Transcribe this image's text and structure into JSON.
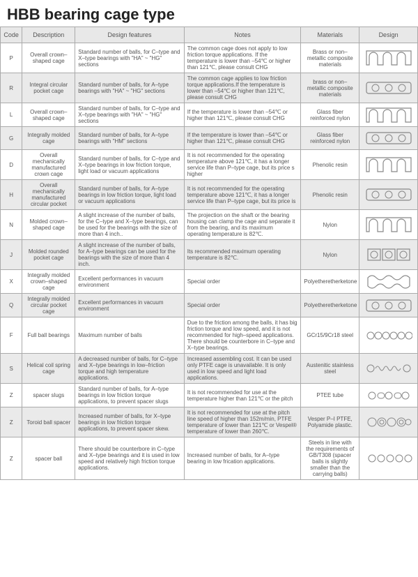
{
  "title": "HBB bearing cage type",
  "headers": {
    "code": "Code",
    "description": "Description",
    "features": "Design features",
    "notes": "Notes",
    "materials": "Materials",
    "design": "Design"
  },
  "rows": [
    {
      "code": "P",
      "desc": "Overall crown–shaped cage",
      "feat": "Standard number of balls, for C–type and X–type bearings with \"HA\" ~ \"HG\" sections",
      "notes": "The common cage does not apply to low friction torque applications. If the temperature is lower than –54℃ or higher than 121℃, please consult CHG",
      "mat": "Brass or non–metallic composite materials",
      "shape": "crown",
      "alt": false
    },
    {
      "code": "R",
      "desc": "Integral circular pocket cage",
      "feat": "Standard number of balls, for A–type bearings with \"HA\" ~ \"HG\" sections",
      "notes": "The common cage applies to low friction torque applications.If the temperature is lower than –54℃ or higher than 121℃, please consult CHG",
      "mat": "brass or non–metallic composite materials",
      "shape": "rect3",
      "alt": true
    },
    {
      "code": "L",
      "desc": "Overall crown–shaped cage",
      "feat": "Standard number of balls, for C–type and X–type bearings with \"HA\" ~ \"HG\" sections",
      "notes": "If the temperature is lower than –54℃ or higher than 121℃, please consult CHG",
      "mat": "Glass fiber reinforced nylon",
      "shape": "crown",
      "alt": false
    },
    {
      "code": "G",
      "desc": "Integrally molded cage",
      "feat": "Standard number of balls, for A–type bearings with \"HM\" sections",
      "notes": "If the temperature is lower than –54℃ or higher than 121℃, please consult CHG",
      "mat": "Glass fiber reinforced nylon",
      "shape": "rect3",
      "alt": true
    },
    {
      "code": "D",
      "desc": "Overall mechanically manufactured crown cage",
      "feat": "Standard number of balls, for C–type and X–type bearings in low friction torque, light load or vacuum applications",
      "notes": "It is not recommended for the operating temperature above 121℃, it has a longer service life than P–type cage, but its price s higher",
      "mat": "Phenolic resin",
      "shape": "crown",
      "alt": false
    },
    {
      "code": "H",
      "desc": "Overall mechanically manufactured circular pocket",
      "feat": "Standard number of balls, for A–type bearings in low friction torque, light load or vacuum applications",
      "notes": "It is not recommended for the operating temperature above 121℃, it has a longer service life than P–type cage, but its price is",
      "mat": "Phenolic resin",
      "shape": "rect3",
      "alt": true
    },
    {
      "code": "N",
      "desc": "Molded crown–shaped cage",
      "feat": "A slight increase of the number of balls, for the C–type and X–type bearings, can be used for the bearings with the size of more than 4 inch..",
      "notes": "The projection on the shaft or the bearing housing can clamp the cage and separate it from the bearing, and its maximum operating temperature is 82℃.",
      "mat": "Nylon",
      "shape": "crown",
      "alt": false
    },
    {
      "code": "J",
      "desc": "Molded rounded pocket cage",
      "feat": "A slight increase of the number of balls, for A–type bearings can be used for the bearings with the size of more than 4 inch.",
      "notes": "Its recommended maximum operating temperature is 82℃.",
      "mat": "Nylon",
      "shape": "rect3sq",
      "alt": true
    },
    {
      "code": "X",
      "desc": "Integrally molded crown–shaped cage",
      "feat": "Excellent performances in vacuum environment",
      "notes": "Special order",
      "mat": "Polyetheretherketone",
      "shape": "wavy",
      "alt": false
    },
    {
      "code": "Q",
      "desc": "Integrally molded circular pocket cage",
      "feat": "Excellent performances in vacuum environment",
      "notes": "Special order",
      "mat": "Polyetheretherketone",
      "shape": "rect3",
      "alt": true
    },
    {
      "code": "F",
      "desc": "Full ball bearings",
      "feat": "Maximum number of balls",
      "notes": "Due to the friction among the balls, it has big friction torque and low speed, and it is not recommended for high–speed applications. There should be counterbore in C–type and X–type bearings.",
      "mat": "GCr15/9Cr18 steel",
      "shape": "balls6",
      "alt": false
    },
    {
      "code": "S",
      "desc": "Helical coil spring cage",
      "feat": "A decreased number of balls, for C–type and X–type bearings in low–friction torque and high temperature applications.",
      "notes": "Increased assembling cost. It can be used only PTFE cage is unavailable. It is only used in low speed and light load applications.",
      "mat": "Austenitic stainless steel",
      "shape": "spring",
      "alt": true
    },
    {
      "code": "Z",
      "desc": "spacer slugs",
      "feat": "Standard number of balls, for A–type bearings in low friction torque applications, to prevent spacer slugs",
      "notes": "It is not recommended for use at the temperature higher than 121℃ or the pitch",
      "mat": "PTEE tube",
      "shape": "slugs",
      "alt": false
    },
    {
      "code": "Z",
      "desc": "Toroid ball spacer",
      "feat": "Increased number of balls, for X–type bearings in low friction torque applications, to prevent spacer skew.",
      "notes": "It is not recommended for use at the pitch line speed of higher than 152m/min, PTFE temperature of lower than 121℃ or Vespel® temperature of lower than 260℃.",
      "mat": "Vesper P–I PTFE, Polyamide plastic.",
      "shape": "toroid",
      "alt": true
    },
    {
      "code": "Z",
      "desc": "spacer ball",
      "feat": "There should be counterbore in C–type and X–type bearings and it is used in low speed and relatively high friction torque applications.",
      "notes": "Increased number of balls, for A–type bearing in low frication applications.",
      "mat": "Steels in line with the requirements of GB/T308 (spacer balls is slightly smaller than the carrying balls)",
      "shape": "balls5",
      "alt": false
    }
  ],
  "colors": {
    "stroke": "#888888",
    "fill_none": "none"
  }
}
